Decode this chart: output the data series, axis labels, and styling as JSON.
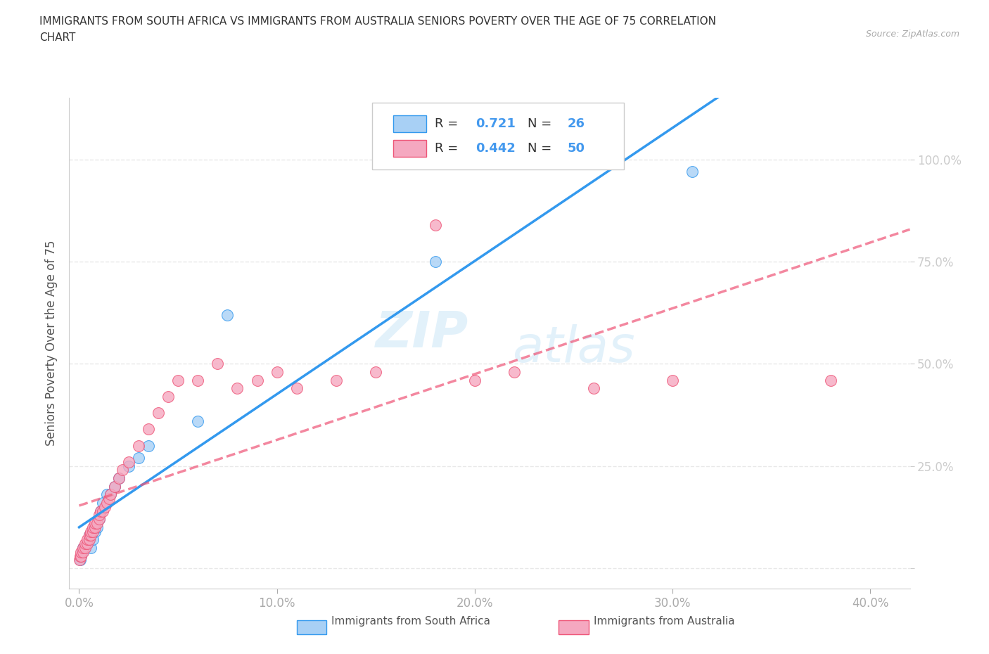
{
  "title_line1": "IMMIGRANTS FROM SOUTH AFRICA VS IMMIGRANTS FROM AUSTRALIA SENIORS POVERTY OVER THE AGE OF 75 CORRELATION",
  "title_line2": "CHART",
  "source": "Source: ZipAtlas.com",
  "ylabel": "Seniors Poverty Over the Age of 75",
  "xlim": [
    -0.005,
    0.42
  ],
  "ylim": [
    -0.05,
    1.15
  ],
  "xticks": [
    0.0,
    0.1,
    0.2,
    0.3,
    0.4
  ],
  "xtick_labels": [
    "0.0%",
    "10.0%",
    "20.0%",
    "30.0%",
    "40.0%"
  ],
  "yticks": [
    0.0,
    0.25,
    0.5,
    0.75,
    1.0
  ],
  "ytick_labels_right": [
    "",
    "25.0%",
    "50.0%",
    "75.0%",
    "100.0%"
  ],
  "r_south_africa": 0.721,
  "n_south_africa": 26,
  "r_australia": 0.442,
  "n_australia": 50,
  "color_south_africa": "#A8D0F5",
  "color_australia": "#F5A8C0",
  "line_color_south_africa": "#3399EE",
  "line_color_australia": "#EE5577",
  "watermark_zip": "ZIP",
  "watermark_atlas": "atlas",
  "south_africa_x": [
    0.0005,
    0.001,
    0.0015,
    0.002,
    0.003,
    0.004,
    0.005,
    0.005,
    0.006,
    0.007,
    0.008,
    0.009,
    0.01,
    0.011,
    0.012,
    0.014,
    0.016,
    0.018,
    0.02,
    0.025,
    0.03,
    0.035,
    0.06,
    0.075,
    0.18,
    0.31
  ],
  "south_africa_y": [
    0.02,
    0.03,
    0.04,
    0.05,
    0.05,
    0.06,
    0.07,
    0.08,
    0.05,
    0.07,
    0.09,
    0.1,
    0.12,
    0.14,
    0.16,
    0.18,
    0.18,
    0.2,
    0.22,
    0.25,
    0.27,
    0.3,
    0.36,
    0.62,
    0.75,
    0.97
  ],
  "australia_x": [
    0.0003,
    0.0005,
    0.001,
    0.001,
    0.002,
    0.002,
    0.003,
    0.003,
    0.004,
    0.004,
    0.005,
    0.005,
    0.006,
    0.006,
    0.007,
    0.007,
    0.008,
    0.008,
    0.009,
    0.01,
    0.01,
    0.011,
    0.012,
    0.013,
    0.014,
    0.015,
    0.016,
    0.018,
    0.02,
    0.022,
    0.025,
    0.03,
    0.035,
    0.04,
    0.045,
    0.05,
    0.06,
    0.07,
    0.08,
    0.09,
    0.1,
    0.11,
    0.13,
    0.15,
    0.18,
    0.2,
    0.22,
    0.26,
    0.3,
    0.38
  ],
  "australia_y": [
    0.02,
    0.03,
    0.03,
    0.04,
    0.04,
    0.05,
    0.05,
    0.06,
    0.06,
    0.07,
    0.07,
    0.08,
    0.08,
    0.09,
    0.09,
    0.1,
    0.1,
    0.11,
    0.11,
    0.12,
    0.13,
    0.14,
    0.14,
    0.15,
    0.16,
    0.17,
    0.18,
    0.2,
    0.22,
    0.24,
    0.26,
    0.3,
    0.34,
    0.38,
    0.42,
    0.46,
    0.46,
    0.5,
    0.44,
    0.46,
    0.48,
    0.44,
    0.46,
    0.48,
    0.84,
    0.46,
    0.48,
    0.44,
    0.46,
    0.46
  ],
  "background_color": "#FFFFFF",
  "grid_color": "#E8E8E8"
}
